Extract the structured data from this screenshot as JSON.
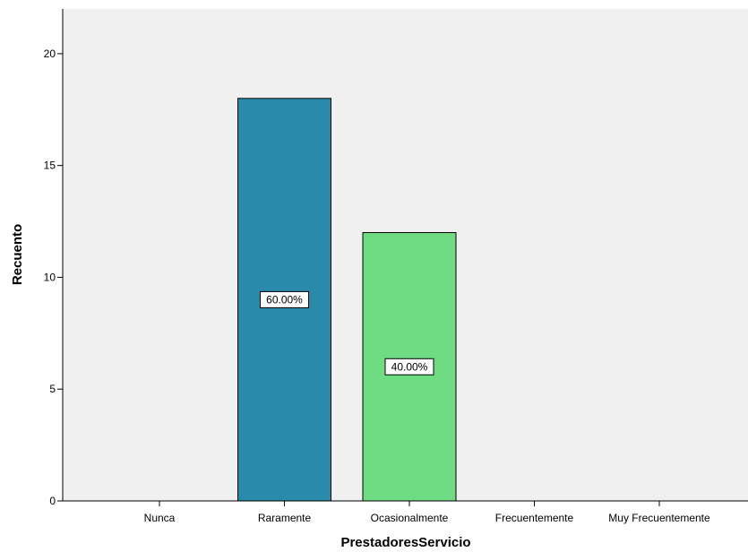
{
  "chart_data": {
    "type": "bar",
    "title": "",
    "xlabel": "PrestadoresServicio",
    "ylabel": "Recuento",
    "categories": [
      "Nunca",
      "Raramente",
      "Ocasionalmente",
      "Frecuentemente",
      "Muy Frecuentemente"
    ],
    "values": [
      0,
      18,
      12,
      0,
      0
    ],
    "data_labels": [
      "",
      "60.00%",
      "40.00%",
      "",
      ""
    ],
    "colors": [
      "#2a8aab",
      "#2a8aab",
      "#6fdc84",
      "#2a8aab",
      "#2a8aab"
    ],
    "ylim": [
      0,
      22
    ],
    "yticks": [
      0,
      5,
      10,
      15,
      20
    ],
    "grid": false,
    "legend": "none",
    "plot_background": "#f0f0f0"
  }
}
